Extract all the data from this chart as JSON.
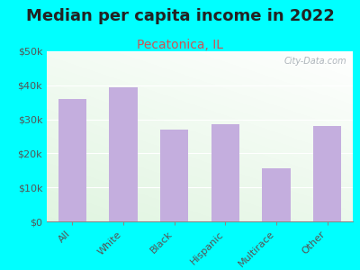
{
  "title": "Median per capita income in 2022",
  "subtitle": "Pecatonica, IL",
  "categories": [
    "All",
    "White",
    "Black",
    "Hispanic",
    "Multirace",
    "Other"
  ],
  "values": [
    36000,
    39500,
    27000,
    28500,
    15500,
    28000
  ],
  "bar_color": "#c4aede",
  "background_outer": "#00FFFF",
  "ylim": [
    0,
    50000
  ],
  "yticks": [
    0,
    10000,
    20000,
    30000,
    40000,
    50000
  ],
  "title_fontsize": 13,
  "subtitle_fontsize": 10,
  "subtitle_color": "#cc5555",
  "title_color": "#222222",
  "tick_color": "#555555",
  "watermark": "City-Data.com"
}
